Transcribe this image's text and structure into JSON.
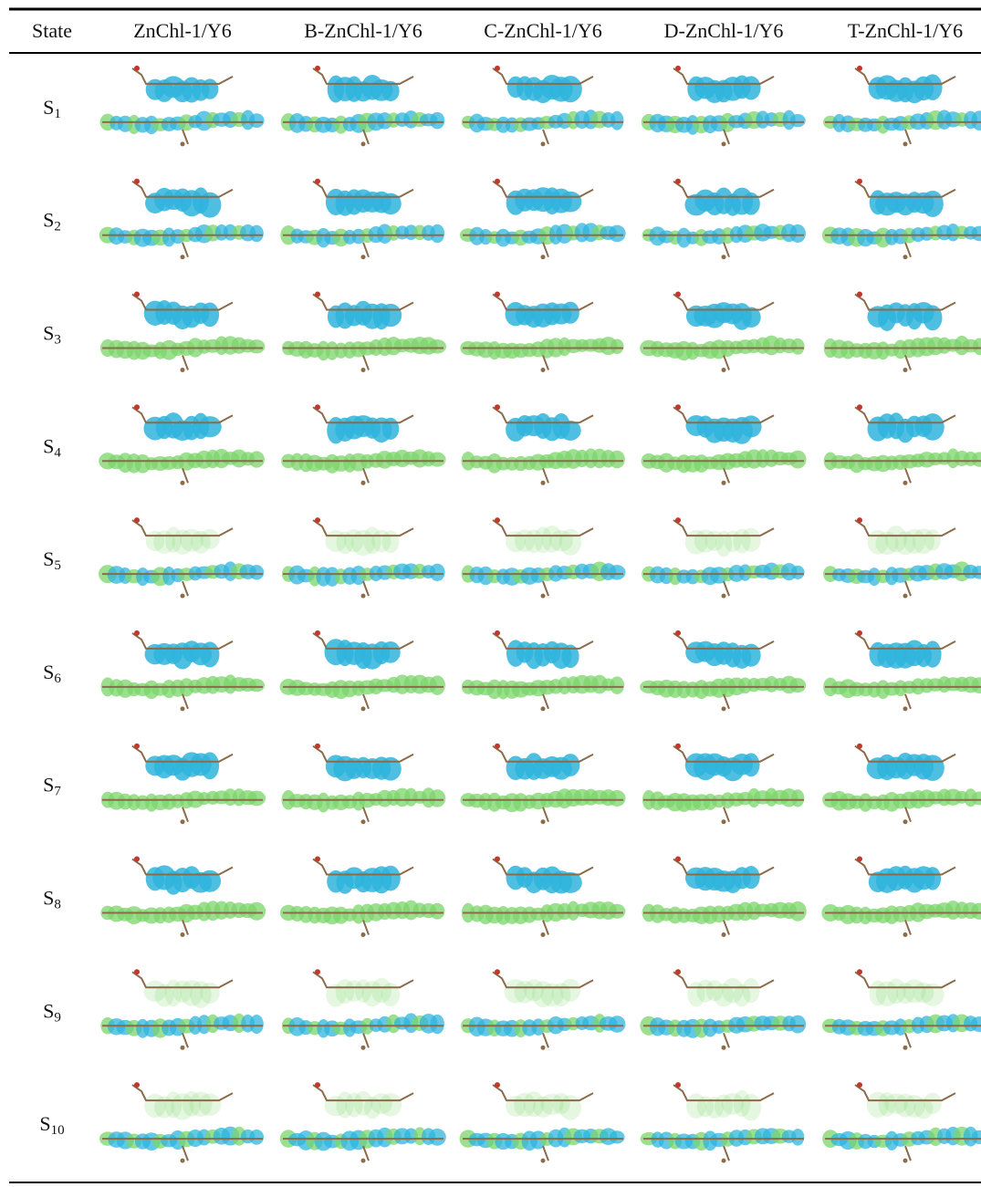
{
  "table": {
    "header": [
      "State",
      "ZnChl-1/Y6",
      "B-ZnChl-1/Y6",
      "C-ZnChl-1/Y6",
      "D-ZnChl-1/Y6",
      "T-ZnChl-1/Y6"
    ],
    "states": [
      {
        "letter": "S",
        "sub": "1"
      },
      {
        "letter": "S",
        "sub": "2"
      },
      {
        "letter": "S",
        "sub": "3"
      },
      {
        "letter": "S",
        "sub": "4"
      },
      {
        "letter": "S",
        "sub": "5"
      },
      {
        "letter": "S",
        "sub": "6"
      },
      {
        "letter": "S",
        "sub": "7"
      },
      {
        "letter": "S",
        "sub": "8"
      },
      {
        "letter": "S",
        "sub": "9"
      },
      {
        "letter": "S",
        "sub": "10"
      }
    ]
  }
}
